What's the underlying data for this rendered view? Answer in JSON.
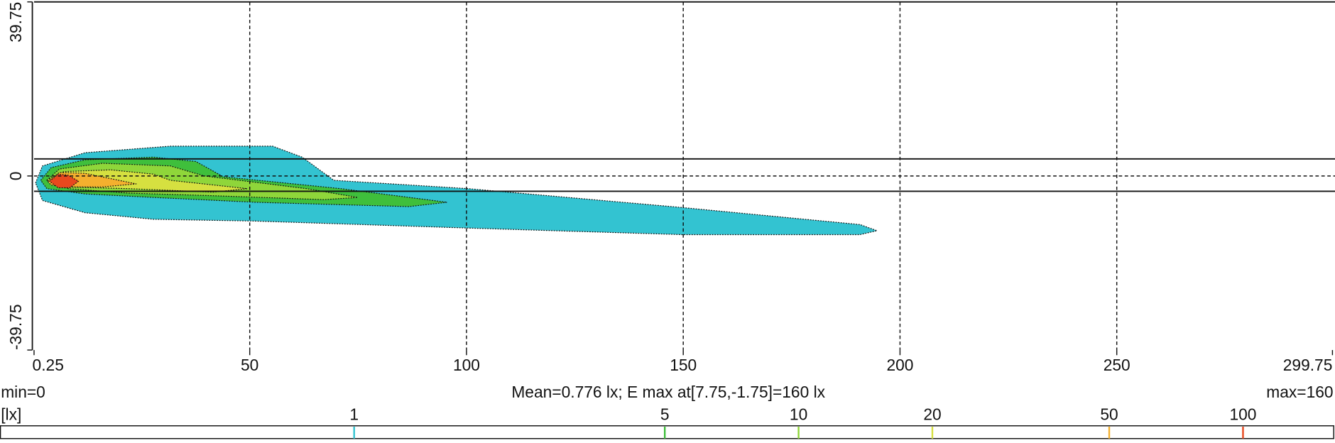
{
  "chart_data": {
    "type": "contour",
    "xlim": [
      0.25,
      299.75
    ],
    "xticks": [
      0.25,
      50,
      100,
      150,
      200,
      250,
      299.75
    ],
    "ylim": [
      -39.75,
      39.75
    ],
    "yticks": [
      39.75,
      0,
      -39.75
    ],
    "grid": true,
    "reference_lines": [
      3.9,
      -3.5
    ],
    "contours": [
      {
        "level": 1,
        "color": "#33c3d1",
        "x": [
          0.6,
          2.2,
          12.0,
          31.7,
          55.3,
          62.1,
          69.4,
          100.4,
          149.6,
          190.8,
          194.7,
          190.8,
          149.6,
          100.4,
          51.3,
          27.8,
          12.0,
          2.2
        ],
        "y": [
          -1.6,
          2.3,
          5.3,
          6.8,
          6.8,
          4.3,
          -1.0,
          -2.9,
          -7.2,
          -11.1,
          -12.5,
          -13.4,
          -13.4,
          -11.9,
          -10.3,
          -9.9,
          -8.4,
          -5.6
        ]
      },
      {
        "level": 5,
        "color": "#3fbf3c",
        "x": [
          1.8,
          4.2,
          12.0,
          27.8,
          37.6,
          43.9,
          71.0,
          95.5,
          86.7,
          51.3,
          27.8,
          12.0,
          3.2
        ],
        "y": [
          -1.0,
          1.9,
          3.7,
          4.3,
          3.3,
          -0.2,
          -2.9,
          -6.0,
          -7.0,
          -6.0,
          -4.9,
          -4.1,
          -2.9
        ]
      },
      {
        "level": 10,
        "color": "#8fd63a",
        "x": [
          3.2,
          6.1,
          16.0,
          31.7,
          39.5,
          63.1,
          74.9,
          67.1,
          41.5,
          21.9,
          8.1
        ],
        "y": [
          -1.0,
          1.6,
          2.9,
          2.3,
          0,
          -2.9,
          -4.9,
          -5.4,
          -4.5,
          -3.9,
          -2.9
        ]
      },
      {
        "level": 20,
        "color": "#d6e040",
        "x": [
          3.2,
          7.1,
          17.9,
          27.8,
          31.7,
          49.4,
          41.5,
          21.9,
          8.1
        ],
        "y": [
          -1.0,
          1.0,
          1.4,
          0.4,
          -1.0,
          -2.9,
          -3.7,
          -2.9,
          -2.5
        ]
      },
      {
        "level": 50,
        "color": "#f4b02e",
        "x": [
          3.4,
          6.1,
          12.0,
          17.9,
          23.8,
          16.0,
          8.1,
          4.2
        ],
        "y": [
          -1.2,
          0.8,
          0.6,
          -0.6,
          -1.8,
          -2.5,
          -2.5,
          -2.1
        ]
      },
      {
        "level": 100,
        "color": "#e8481e",
        "x": [
          3.8,
          5.8,
          8.1,
          10.5,
          8.5,
          5.8
        ],
        "y": [
          -1.2,
          0.4,
          0.2,
          -1.2,
          -2.7,
          -2.7
        ]
      }
    ],
    "stats": {
      "min": "min=0",
      "mean": "Mean=0.776 lx; E max at[7.75,-1.75]=160 lx",
      "max": "max=160"
    },
    "legend": {
      "unit": "[lx]",
      "log_scale": true,
      "lim": [
        0.16,
        160
      ]
    }
  }
}
